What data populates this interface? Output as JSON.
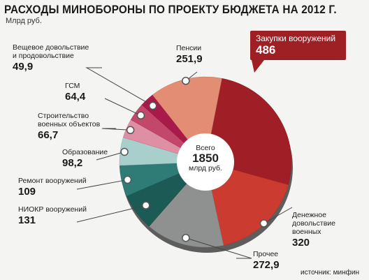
{
  "title": "РАСХОДЫ МИНОБОРОНЫ ПО ПРОЕКТУ БЮДЖЕТА НА 2012 Г.",
  "unit": "Млрд руб.",
  "source": "источник: минфин",
  "center": {
    "line1": "Всего",
    "value": "1850",
    "line3": "млрд руб."
  },
  "colors": {
    "background": "#f4f4f3",
    "accent": "#9e1f24"
  },
  "chart_data": {
    "type": "pie",
    "title": "РАСХОДЫ МИНОБОРОНЫ ПО ПРОЕКТУ БЮДЖЕТА НА 2012 Г.",
    "unit": "Млрд руб.",
    "total": 1850,
    "slices": [
      {
        "label": "Закупки вооружений",
        "value": 486,
        "value_text": "486",
        "color": "#a01f26"
      },
      {
        "label": "Денежное довольствие военных",
        "value": 320,
        "value_text": "320",
        "color": "#cc3b2f"
      },
      {
        "label": "Прочее",
        "value": 272.9,
        "value_text": "272,9",
        "color": "#8f9190"
      },
      {
        "label": "НИОКР вооружений",
        "value": 131,
        "value_text": "131",
        "color": "#1c5a55"
      },
      {
        "label": "Ремонт вооружений",
        "value": 109,
        "value_text": "109",
        "color": "#2f7c76"
      },
      {
        "label": "Образование",
        "value": 98.2,
        "value_text": "98,2",
        "color": "#a8cfcb"
      },
      {
        "label": "Строительство военных объектов",
        "value": 66.7,
        "value_text": "66,7",
        "color": "#df8fa3"
      },
      {
        "label": "ГСМ",
        "value": 64.4,
        "value_text": "64,4",
        "color": "#c2476a"
      },
      {
        "label": "Вещевое довольствие и продовольствие",
        "value": 49.9,
        "value_text": "49,9",
        "color": "#a81a49"
      },
      {
        "label": "Пенсии",
        "value": 251.9,
        "value_text": "251,9",
        "color": "#e38d74"
      }
    ]
  }
}
